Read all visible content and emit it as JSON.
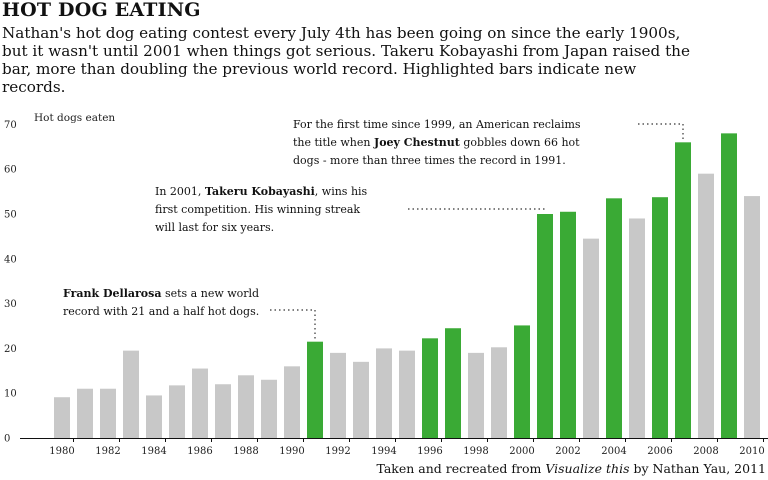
{
  "header": {
    "title": "HOT DOG EATING",
    "subtitle": "Nathan's hot dog eating contest every July 4th has been going on since the early 1900s, but it wasn't until 2001 when things got serious. Takeru Kobayashi from Japan raised the bar, more than doubling the previous world record. Highlighted bars indicate new records."
  },
  "annotations": {
    "dellarosa": {
      "bold": "Frank Dellarosa",
      "text": " sets a new world record with 21 and a half hot dogs."
    },
    "kobayashi": {
      "prefix": "In 2001, ",
      "bold": "Takeru Kobayashi",
      "text": ", wins his first competition. His winning streak will last for six years."
    },
    "chestnut": {
      "prefix": "For the first time since 1999, an American reclaims the title when ",
      "bold": "Joey Chestnut",
      "text": " gobbles down 66 hot dogs - more than three times the record in 1991."
    }
  },
  "source": {
    "prefix": "Taken and recreated from ",
    "book": "Visualize this",
    "suffix": " by Nathan Yau, 2011"
  },
  "colors": {
    "record": "#3aaa35",
    "normal": "#c8c8c8",
    "axis": "#111111"
  },
  "chart_data": {
    "type": "bar",
    "ylabel": "Hot dogs eaten",
    "ylim": [
      0,
      70
    ],
    "yticks": [
      0,
      10,
      20,
      30,
      40,
      50,
      60,
      70
    ],
    "xticks": [
      1980,
      1982,
      1984,
      1986,
      1988,
      1990,
      1992,
      1994,
      1996,
      1998,
      2000,
      2002,
      2004,
      2006,
      2008,
      2010
    ],
    "categories": [
      1980,
      1981,
      1982,
      1983,
      1984,
      1985,
      1986,
      1987,
      1988,
      1989,
      1990,
      1991,
      1992,
      1993,
      1994,
      1995,
      1996,
      1997,
      1998,
      1999,
      2000,
      2001,
      2002,
      2003,
      2004,
      2005,
      2006,
      2007,
      2008,
      2009,
      2010
    ],
    "values": [
      9.1,
      11,
      11,
      19.5,
      9.5,
      11.75,
      15.5,
      12,
      14,
      13,
      16,
      21.5,
      19,
      17,
      20,
      19.5,
      22.25,
      24.5,
      19,
      20.25,
      25.13,
      50,
      50.5,
      44.5,
      53.5,
      49,
      53.75,
      66,
      59,
      68,
      54
    ],
    "new_record": [
      false,
      false,
      false,
      false,
      false,
      false,
      false,
      false,
      false,
      false,
      false,
      true,
      false,
      false,
      false,
      false,
      true,
      true,
      false,
      false,
      true,
      true,
      true,
      false,
      true,
      false,
      true,
      true,
      false,
      true,
      false
    ]
  }
}
